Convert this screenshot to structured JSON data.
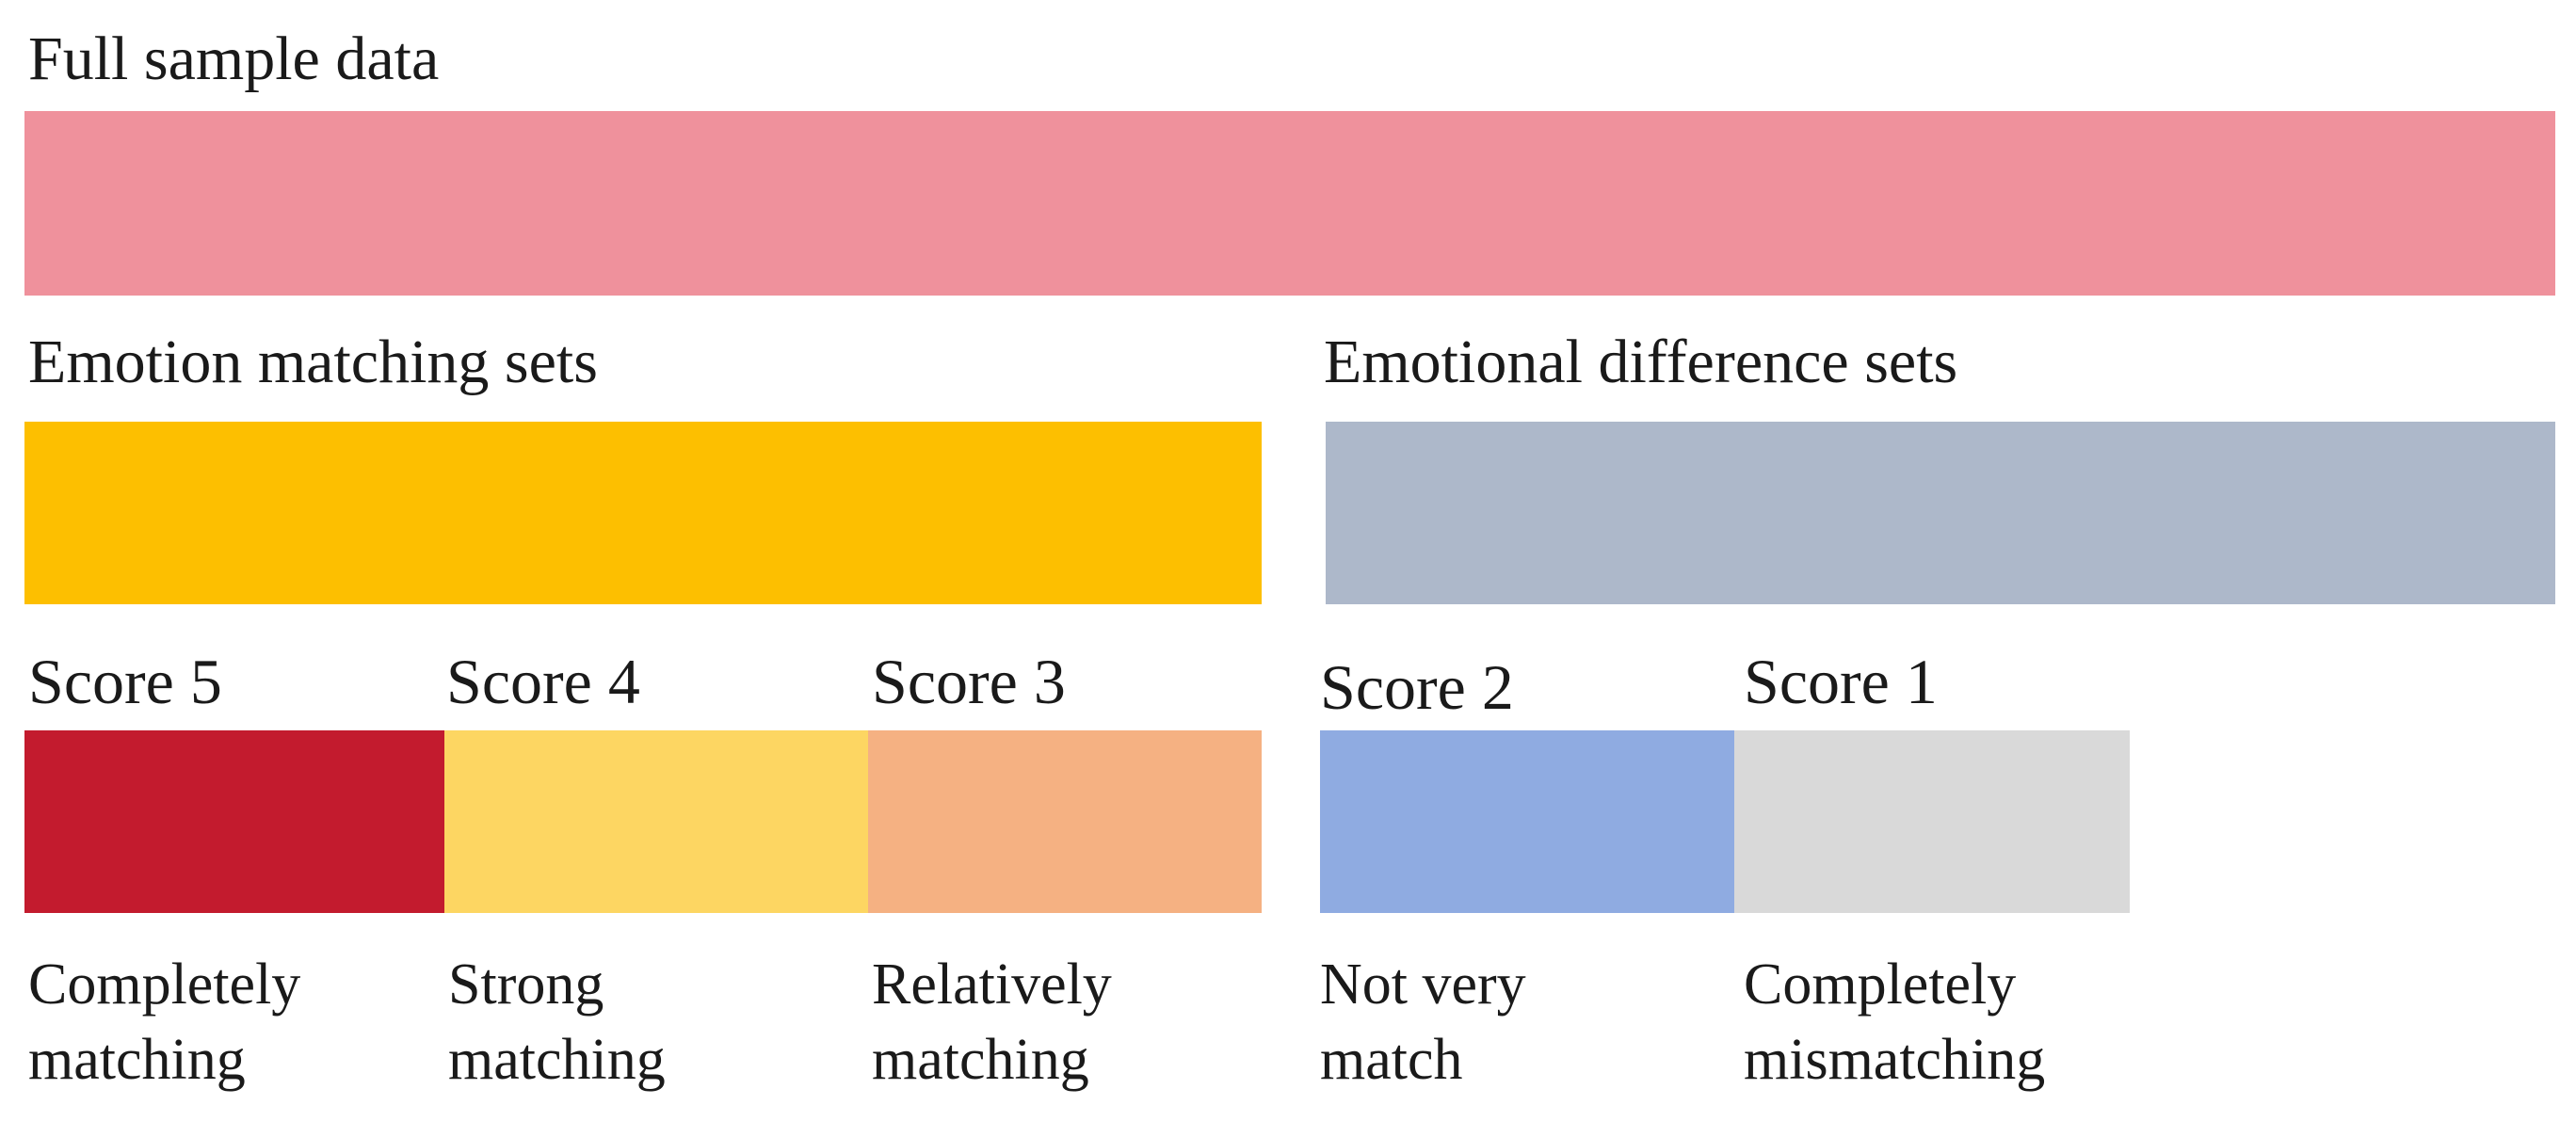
{
  "full_sample": {
    "label": "Full sample data",
    "color": "#ef919c"
  },
  "matching_sets": {
    "label": "Emotion matching sets",
    "color": "#fdbf00"
  },
  "difference_sets": {
    "label": "Emotional difference sets",
    "color": "#adb8ca"
  },
  "scores": [
    {
      "label": "Score 5",
      "desc_line1": "Completely",
      "desc_line2": "matching",
      "color": "#c31b2e"
    },
    {
      "label": "Score 4",
      "desc_line1": "Strong",
      "desc_line2": "matching",
      "color": "#fdd662"
    },
    {
      "label": "Score 3",
      "desc_line1": "Relatively",
      "desc_line2": "matching",
      "color": "#f5b182"
    },
    {
      "label": "Score 2",
      "desc_line1": "Not very",
      "desc_line2": "match",
      "color": "#8fabe1"
    },
    {
      "label": "Score 1",
      "desc_line1": "Completely",
      "desc_line2": "mismatching",
      "color": "#d9d9d9"
    }
  ]
}
